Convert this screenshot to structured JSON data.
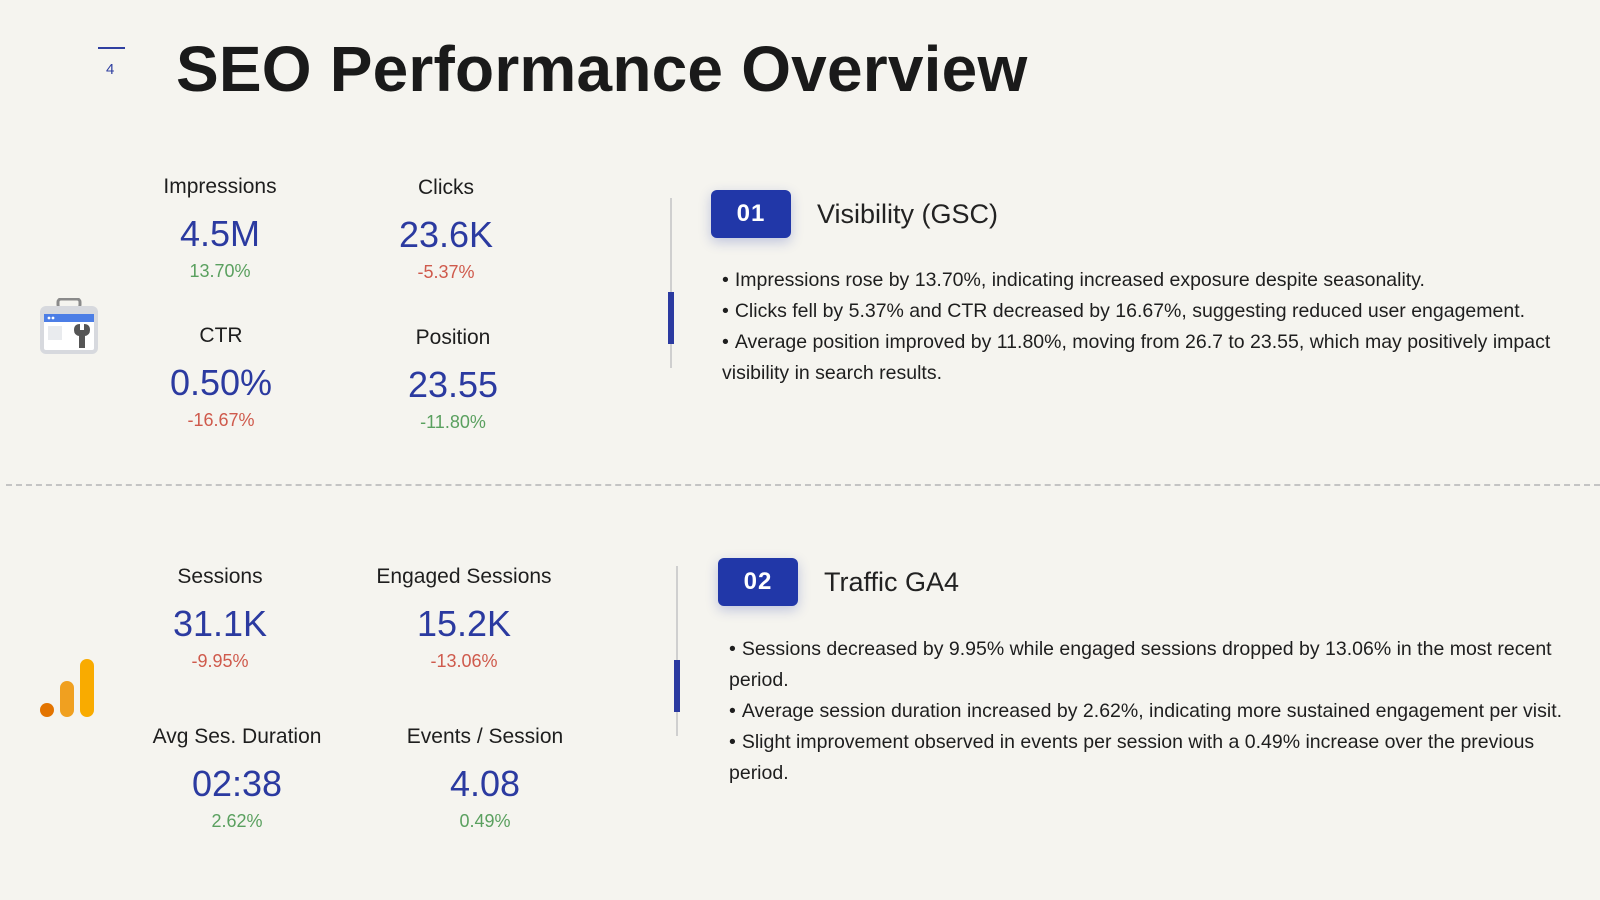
{
  "page": {
    "number": "4",
    "title": "SEO Performance Overview"
  },
  "gsc": {
    "icon": "search-console-toolbox-icon",
    "metrics": [
      {
        "label": "Impressions",
        "value": "4.5M",
        "delta": "13.70%",
        "trend": "up"
      },
      {
        "label": "Clicks",
        "value": "23.6K",
        "delta": "-5.37%",
        "trend": "down"
      },
      {
        "label": "CTR",
        "value": "0.50%",
        "delta": "-16.67%",
        "trend": "down"
      },
      {
        "label": "Position",
        "value": "23.55",
        "delta": "-11.80%",
        "trend": "up"
      }
    ],
    "section": {
      "badge": "01",
      "title": "Visibility (GSC)",
      "bullets": [
        "Impressions rose by 13.70%, indicating increased exposure despite seasonality.",
        "Clicks fell by 5.37% and CTR decreased by 16.67%, suggesting reduced user engagement.",
        "Average position improved by 11.80%, moving from 26.7 to 23.55, which may positively impact visibility in search results."
      ]
    }
  },
  "ga4": {
    "icon": "google-analytics-bars-icon",
    "metrics": [
      {
        "label": "Sessions",
        "value": "31.1K",
        "delta": "-9.95%",
        "trend": "down"
      },
      {
        "label": "Engaged Sessions",
        "value": "15.2K",
        "delta": "-13.06%",
        "trend": "down"
      },
      {
        "label": "Avg Ses. Duration",
        "value": "02:38",
        "delta": "2.62%",
        "trend": "up"
      },
      {
        "label": "Events / Session",
        "value": "4.08",
        "delta": "0.49%",
        "trend": "up"
      }
    ],
    "section": {
      "badge": "02",
      "title": "Traffic GA4",
      "bullets": [
        "Sessions decreased by 9.95% while engaged sessions dropped by 13.06% in the most recent period.",
        "Average session duration increased by 2.62%, indicating more sustained engagement per visit.",
        "Slight improvement observed in events per session with a 0.49% increase over the previous period."
      ]
    }
  },
  "colors": {
    "accent": "#2137a8",
    "positive": "#5aa05f",
    "negative": "#cf5a4c",
    "background": "#f5f4ef"
  }
}
